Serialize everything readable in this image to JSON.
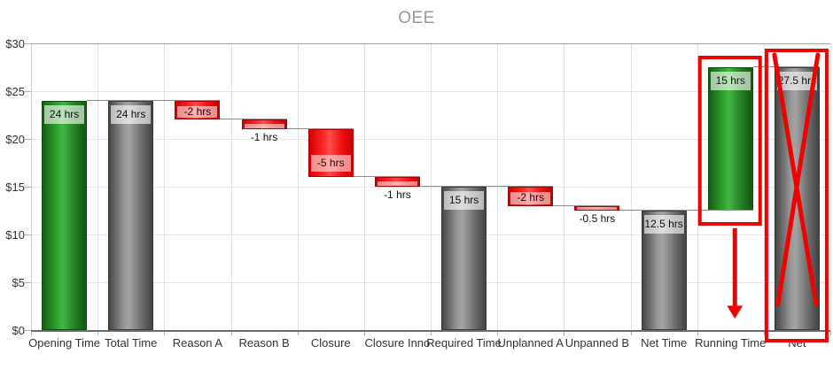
{
  "title": "OEE",
  "chart_data": {
    "type": "bar",
    "subtype": "waterfall",
    "title": "OEE",
    "grid": "on",
    "legend": "none",
    "categories": [
      "Opening Time",
      "Total Time",
      "Reason A",
      "Reason B",
      "Closure",
      "Closure Inno",
      "Required Time",
      "Unplanned A",
      "Unpanned B",
      "Net Time",
      "Running Time",
      "Net"
    ],
    "bars": [
      {
        "category": "Opening Time",
        "from": 0,
        "to": 24,
        "label": "24 hrs",
        "role": "green",
        "label_placement": "inside-top"
      },
      {
        "category": "Total Time",
        "from": 0,
        "to": 24,
        "label": "24 hrs",
        "role": "gray",
        "label_placement": "inside-top"
      },
      {
        "category": "Reason A",
        "from": 22,
        "to": 24,
        "label": "-2 hrs",
        "role": "red",
        "label_placement": "inside-bottom"
      },
      {
        "category": "Reason B",
        "from": 21,
        "to": 22,
        "label": "-1 hrs",
        "role": "red",
        "label_placement": "below"
      },
      {
        "category": "Closure",
        "from": 16,
        "to": 21,
        "label": "-5 hrs",
        "role": "red",
        "label_placement": "inside-bottom"
      },
      {
        "category": "Closure Inno",
        "from": 15,
        "to": 16,
        "label": "-1 hrs",
        "role": "red",
        "label_placement": "below"
      },
      {
        "category": "Required Time",
        "from": 0,
        "to": 15,
        "label": "15 hrs",
        "role": "gray",
        "label_placement": "inside-top"
      },
      {
        "category": "Unplanned A",
        "from": 13,
        "to": 15,
        "label": "-2 hrs",
        "role": "red",
        "label_placement": "inside-bottom"
      },
      {
        "category": "Unpanned B",
        "from": 12.5,
        "to": 13,
        "label": "-0.5 hrs",
        "role": "red",
        "label_placement": "below"
      },
      {
        "category": "Net Time",
        "from": 0,
        "to": 12.5,
        "label": "12.5 hrs",
        "role": "gray",
        "label_placement": "inside-top"
      },
      {
        "category": "Running Time",
        "from": 12.5,
        "to": 27.5,
        "label": "15 hrs",
        "role": "green",
        "label_placement": "inside-top"
      },
      {
        "category": "Net",
        "from": 0,
        "to": 27.5,
        "label": "27.5 hrs",
        "role": "gray",
        "label_placement": "inside-top"
      }
    ],
    "yaxis": {
      "min": 0,
      "max": 30,
      "step": 5,
      "tick_labels": [
        "$0",
        "$5",
        "$10",
        "$15",
        "$20",
        "$25",
        "$30"
      ]
    },
    "connector_levels": [
      24,
      24,
      22,
      21,
      16,
      15,
      15,
      13,
      12.5,
      12.5,
      27.5
    ],
    "colors": {
      "green": "#2fa42f",
      "gray": "#969696",
      "red": "#ff2a2a",
      "connector": "#8c8c8c",
      "annotation_red": "#ee0202",
      "title_gray": "#999999"
    },
    "annotations": {
      "boxes": [
        {
          "target": "Running Time",
          "crossed_out": false
        },
        {
          "target": "Net",
          "crossed_out": true
        }
      ],
      "arrow": {
        "target": "Running Time",
        "direction": "down"
      }
    }
  }
}
